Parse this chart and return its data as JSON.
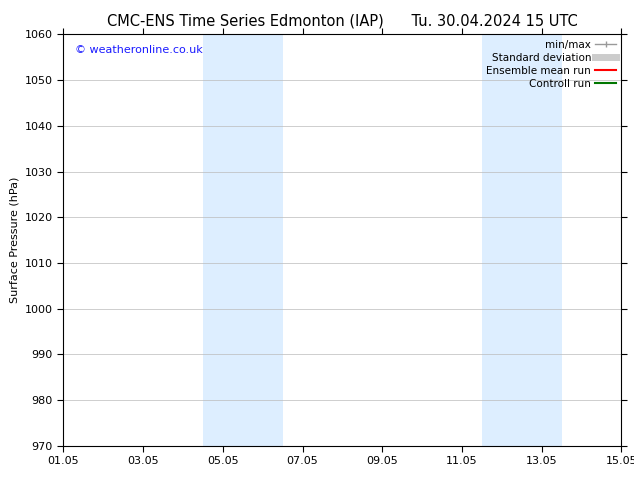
{
  "title_left": "CMC-ENS Time Series Edmonton (IAP)",
  "title_right": "Tu. 30.04.2024 15 UTC",
  "ylabel": "Surface Pressure (hPa)",
  "ylim": [
    970,
    1060
  ],
  "yticks": [
    970,
    980,
    990,
    1000,
    1010,
    1020,
    1030,
    1040,
    1050,
    1060
  ],
  "xlim_start": 0,
  "xlim_end": 14,
  "xtick_positions": [
    0,
    2,
    4,
    6,
    8,
    10,
    12,
    14
  ],
  "xtick_labels": [
    "01.05",
    "03.05",
    "05.05",
    "07.05",
    "09.05",
    "11.05",
    "13.05",
    "15.05"
  ],
  "watermark": "© weatheronline.co.uk",
  "watermark_color": "#1a1aff",
  "bg_color": "#ffffff",
  "plot_bg_color": "#ffffff",
  "shaded_regions": [
    {
      "xmin": 3.5,
      "xmax": 5.5,
      "color": "#ddeeff"
    },
    {
      "xmin": 10.5,
      "xmax": 12.5,
      "color": "#ddeeff"
    }
  ],
  "legend_items": [
    {
      "label": "min/max",
      "color": "#999999",
      "linewidth": 1.0,
      "style": "minmax"
    },
    {
      "label": "Standard deviation",
      "color": "#cccccc",
      "linewidth": 5.0,
      "style": "thick"
    },
    {
      "label": "Ensemble mean run",
      "color": "#ff0000",
      "linewidth": 1.5,
      "style": "line"
    },
    {
      "label": "Controll run",
      "color": "#007700",
      "linewidth": 1.5,
      "style": "line"
    }
  ],
  "grid_color": "#bbbbbb",
  "tick_color": "#000000",
  "font_size": 8,
  "title_font_size": 10.5
}
